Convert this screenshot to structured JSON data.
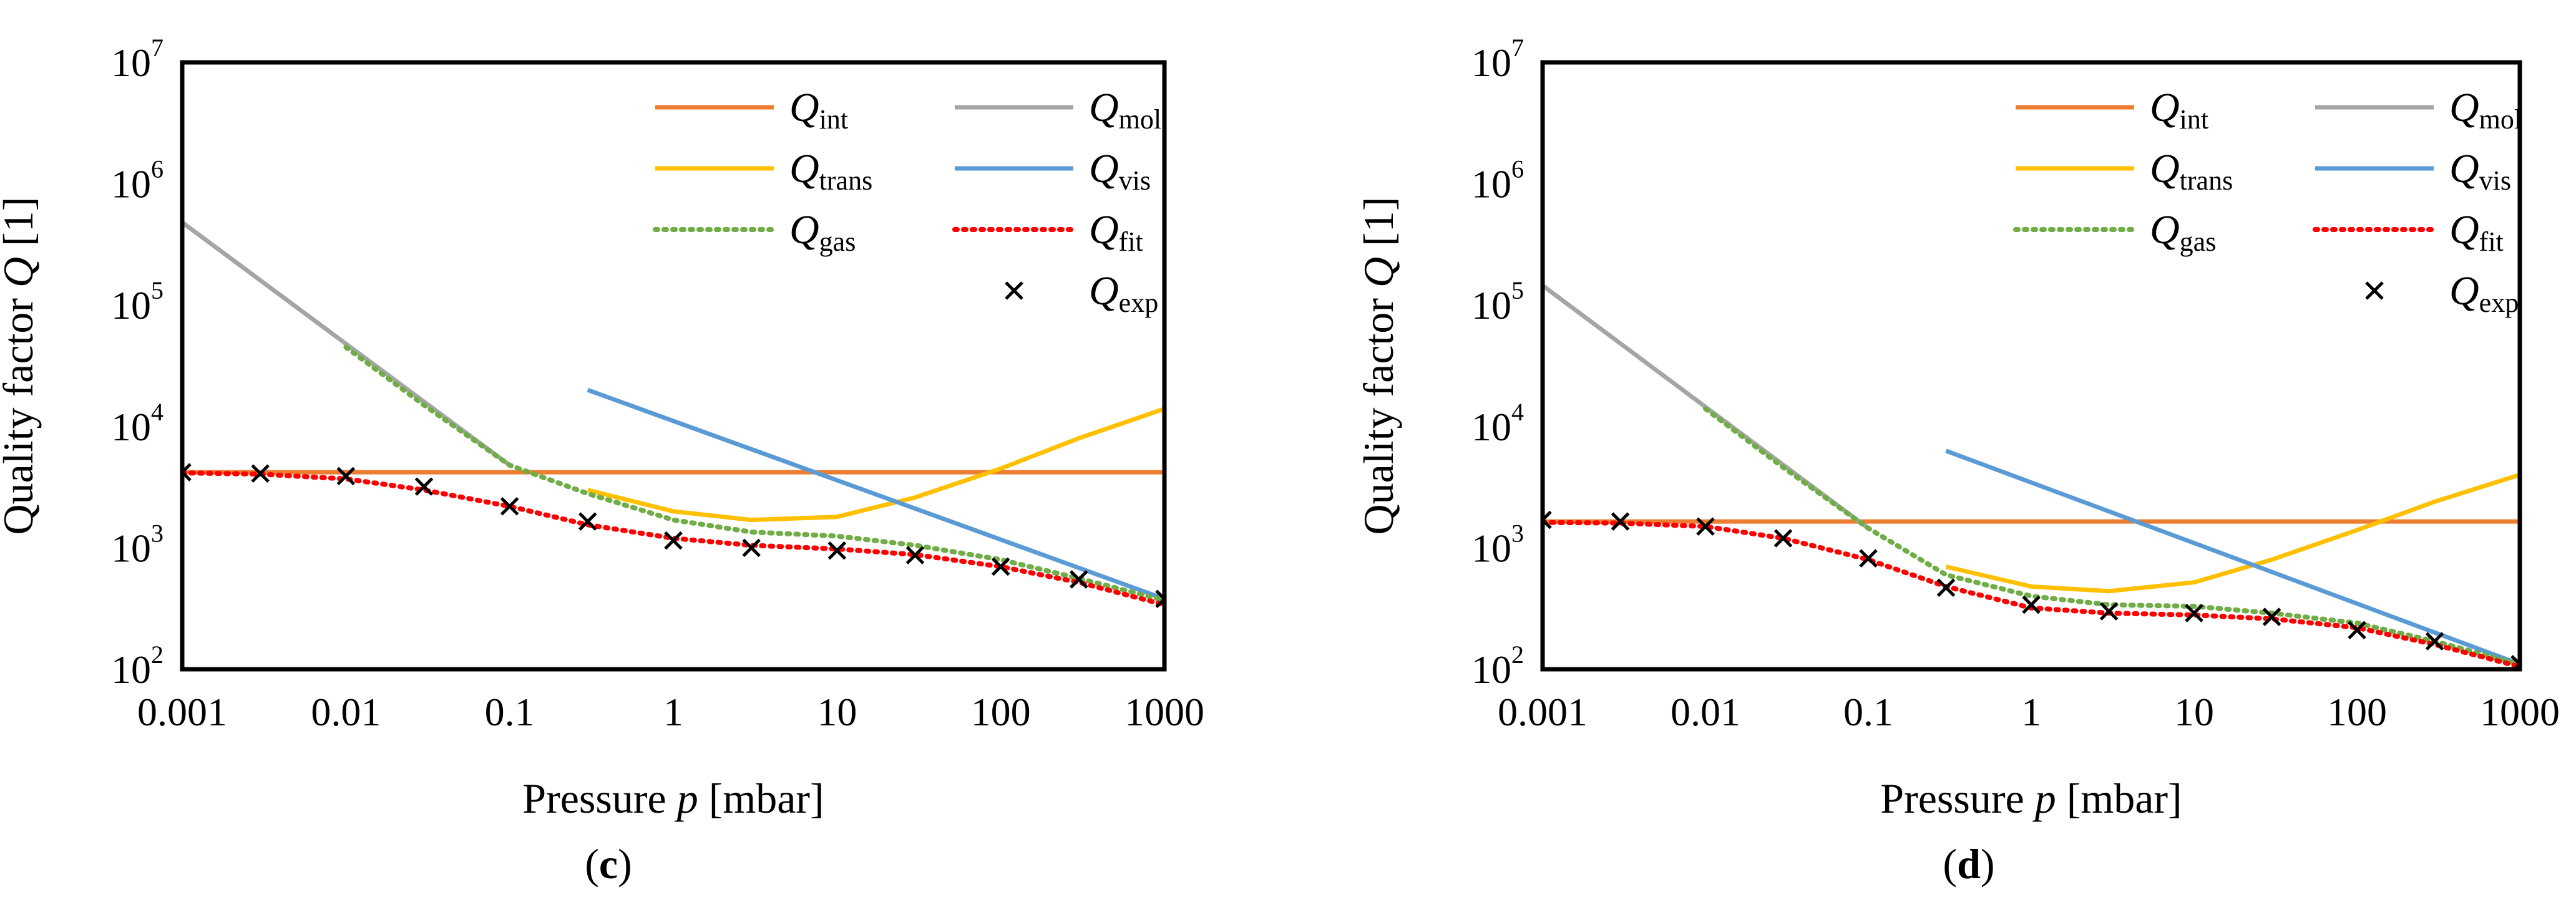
{
  "chart_data": [
    {
      "type": "line",
      "panel_label": "c",
      "xlabel": {
        "prefix": "Pressure ",
        "var": "p",
        "suffix": " [mbar]"
      },
      "ylabel": {
        "prefix": "Quality factor ",
        "var": "Q",
        "suffix": " [1]"
      },
      "x_scale": "log",
      "y_scale": "log",
      "xlim": [
        0.001,
        1000
      ],
      "ylim": [
        100,
        10000000
      ],
      "x_ticks": [
        "0.001",
        "0.01",
        "0.1",
        "1",
        "10",
        "100",
        "1000"
      ],
      "y_ticks": [
        {
          "base": "10",
          "exp": "2"
        },
        {
          "base": "10",
          "exp": "3"
        },
        {
          "base": "10",
          "exp": "4"
        },
        {
          "base": "10",
          "exp": "5"
        },
        {
          "base": "10",
          "exp": "6"
        },
        {
          "base": "10",
          "exp": "7"
        }
      ],
      "grid": false,
      "legend_position": "top-right",
      "series": [
        {
          "key": "int",
          "name": "Q",
          "sub": "int",
          "color": "#ED7D31",
          "style": "solid",
          "x": [
            0.001,
            1000
          ],
          "y": [
            4200,
            4200
          ]
        },
        {
          "key": "mol",
          "name": "Q",
          "sub": "mol",
          "color": "#A5A5A5",
          "style": "solid",
          "x": [
            0.001,
            0.01,
            0.1
          ],
          "y": [
            480000,
            48000,
            4800
          ]
        },
        {
          "key": "trans",
          "name": "Q",
          "sub": "trans",
          "color": "#FFC000",
          "style": "solid",
          "x": [
            0.3,
            1,
            3,
            10,
            30,
            100,
            300,
            1000
          ],
          "y": [
            3000,
            2000,
            1700,
            1800,
            2600,
            4500,
            8000,
            14000
          ]
        },
        {
          "key": "vis",
          "name": "Q",
          "sub": "vis",
          "color": "#5B9BD5",
          "style": "solid",
          "x": [
            0.3,
            1000
          ],
          "y": [
            20000,
            380
          ]
        },
        {
          "key": "gas",
          "name": "Q",
          "sub": "gas",
          "color": "#70AD47",
          "style": "dotted",
          "x": [
            0.01,
            0.03,
            0.1,
            0.3,
            1,
            3,
            10,
            30,
            100,
            300,
            1000
          ],
          "y": [
            45000,
            15000,
            4800,
            2800,
            1700,
            1350,
            1250,
            1050,
            800,
            560,
            370
          ]
        },
        {
          "key": "fit",
          "name": "Q",
          "sub": "fit",
          "color": "#FF0000",
          "style": "dotted",
          "x": [
            0.001,
            0.003,
            0.01,
            0.03,
            0.1,
            0.3,
            1,
            3,
            10,
            30,
            100,
            300,
            1000
          ],
          "y": [
            4150,
            4050,
            3700,
            3000,
            2200,
            1550,
            1200,
            1050,
            980,
            880,
            700,
            520,
            340
          ]
        },
        {
          "key": "exp",
          "name": "Q",
          "sub": "exp",
          "color": "#000000",
          "style": "markers",
          "x": [
            0.001,
            0.003,
            0.01,
            0.03,
            0.1,
            0.3,
            1,
            3,
            10,
            30,
            100,
            300,
            1000
          ],
          "y": [
            4200,
            4100,
            3900,
            3200,
            2200,
            1650,
            1150,
            1000,
            950,
            870,
            700,
            550,
            380
          ]
        }
      ]
    },
    {
      "type": "line",
      "panel_label": "d",
      "xlabel": {
        "prefix": "Pressure ",
        "var": "p",
        "suffix": " [mbar]"
      },
      "ylabel": {
        "prefix": "Quality factor ",
        "var": "Q",
        "suffix": " [1]"
      },
      "x_scale": "log",
      "y_scale": "log",
      "xlim": [
        0.001,
        1000
      ],
      "ylim": [
        100,
        10000000
      ],
      "x_ticks": [
        "0.001",
        "0.01",
        "0.1",
        "1",
        "10",
        "100",
        "1000"
      ],
      "y_ticks": [
        {
          "base": "10",
          "exp": "2"
        },
        {
          "base": "10",
          "exp": "3"
        },
        {
          "base": "10",
          "exp": "4"
        },
        {
          "base": "10",
          "exp": "5"
        },
        {
          "base": "10",
          "exp": "6"
        },
        {
          "base": "10",
          "exp": "7"
        }
      ],
      "grid": false,
      "legend_position": "top-right",
      "series": [
        {
          "key": "int",
          "name": "Q",
          "sub": "int",
          "color": "#ED7D31",
          "style": "solid",
          "x": [
            0.001,
            1000
          ],
          "y": [
            1650,
            1650
          ]
        },
        {
          "key": "mol",
          "name": "Q",
          "sub": "mol",
          "color": "#A5A5A5",
          "style": "solid",
          "x": [
            0.001,
            0.01,
            0.1
          ],
          "y": [
            145000,
            14500,
            1450
          ]
        },
        {
          "key": "trans",
          "name": "Q",
          "sub": "trans",
          "color": "#FFC000",
          "style": "solid",
          "x": [
            0.3,
            1,
            3,
            10,
            30,
            100,
            300,
            1000
          ],
          "y": [
            700,
            480,
            440,
            520,
            800,
            1400,
            2400,
            4000
          ]
        },
        {
          "key": "vis",
          "name": "Q",
          "sub": "vis",
          "color": "#5B9BD5",
          "style": "solid",
          "x": [
            0.3,
            1000
          ],
          "y": [
            6300,
            110
          ]
        },
        {
          "key": "gas",
          "name": "Q",
          "sub": "gas",
          "color": "#70AD47",
          "style": "dotted",
          "x": [
            0.01,
            0.03,
            0.1,
            0.3,
            1,
            3,
            10,
            30,
            100,
            300,
            1000
          ],
          "y": [
            14000,
            4600,
            1450,
            600,
            400,
            340,
            330,
            290,
            240,
            170,
            110
          ]
        },
        {
          "key": "fit",
          "name": "Q",
          "sub": "fit",
          "color": "#FF0000",
          "style": "dotted",
          "x": [
            0.001,
            0.003,
            0.01,
            0.03,
            0.1,
            0.3,
            1,
            3,
            10,
            30,
            100,
            300,
            1000
          ],
          "y": [
            1620,
            1600,
            1500,
            1200,
            800,
            480,
            320,
            290,
            280,
            260,
            220,
            160,
            105
          ]
        },
        {
          "key": "exp",
          "name": "Q",
          "sub": "exp",
          "color": "#000000",
          "style": "markers",
          "x": [
            0.001,
            0.003,
            0.01,
            0.03,
            0.1,
            0.3,
            1,
            3,
            10,
            30,
            100,
            300,
            1000
          ],
          "y": [
            1700,
            1650,
            1500,
            1200,
            820,
            470,
            340,
            300,
            290,
            270,
            210,
            170,
            110
          ]
        }
      ]
    }
  ]
}
